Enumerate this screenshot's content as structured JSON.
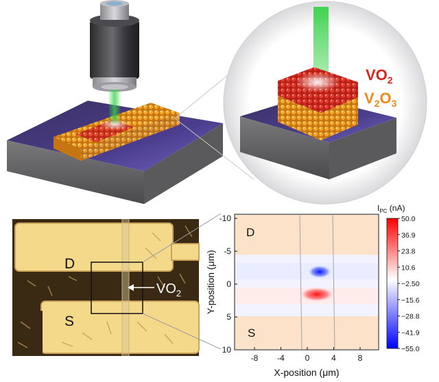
{
  "top_panel": {
    "vo2_label": "VO",
    "vo2_sub": "2",
    "v2o3_label_a": "V",
    "v2o3_sub_a": "2",
    "v2o3_label_b": "O",
    "v2o3_sub_b": "3",
    "colors": {
      "vo2": "#d7261e",
      "v2o3": "#ec8a1c",
      "substrate_top": "#4b3d8c",
      "substrate_side": "#6e6e70",
      "laser": "#39d24a"
    }
  },
  "micrograph": {
    "drain_label": "D",
    "source_label": "S",
    "vo2_arrow_label": "VO",
    "vo2_arrow_sub": "2",
    "colors": {
      "electrode": "#f4d98a",
      "background": "#3a2a14"
    }
  },
  "map": {
    "drain_label": "D",
    "source_label": "S",
    "x_axis_title": "X-position (μm)",
    "y_axis_title": "Y-position (μm)",
    "x_ticks": [
      "-8",
      "-4",
      "0",
      "4",
      "8"
    ],
    "y_ticks": [
      "-10",
      "-5",
      "0",
      "5",
      "10"
    ],
    "colorbar": {
      "title": "I",
      "title_sub": "PC",
      "title_unit": " (nA)",
      "ticks": [
        "50.0",
        "36.9",
        "23.8",
        "10.6",
        "−2.50",
        "−15.6",
        "−28.8",
        "−41.9",
        "−55.0"
      ],
      "colors": {
        "max": "#ff0000",
        "mid": "#ffffff",
        "min": "#0000ff"
      }
    }
  }
}
